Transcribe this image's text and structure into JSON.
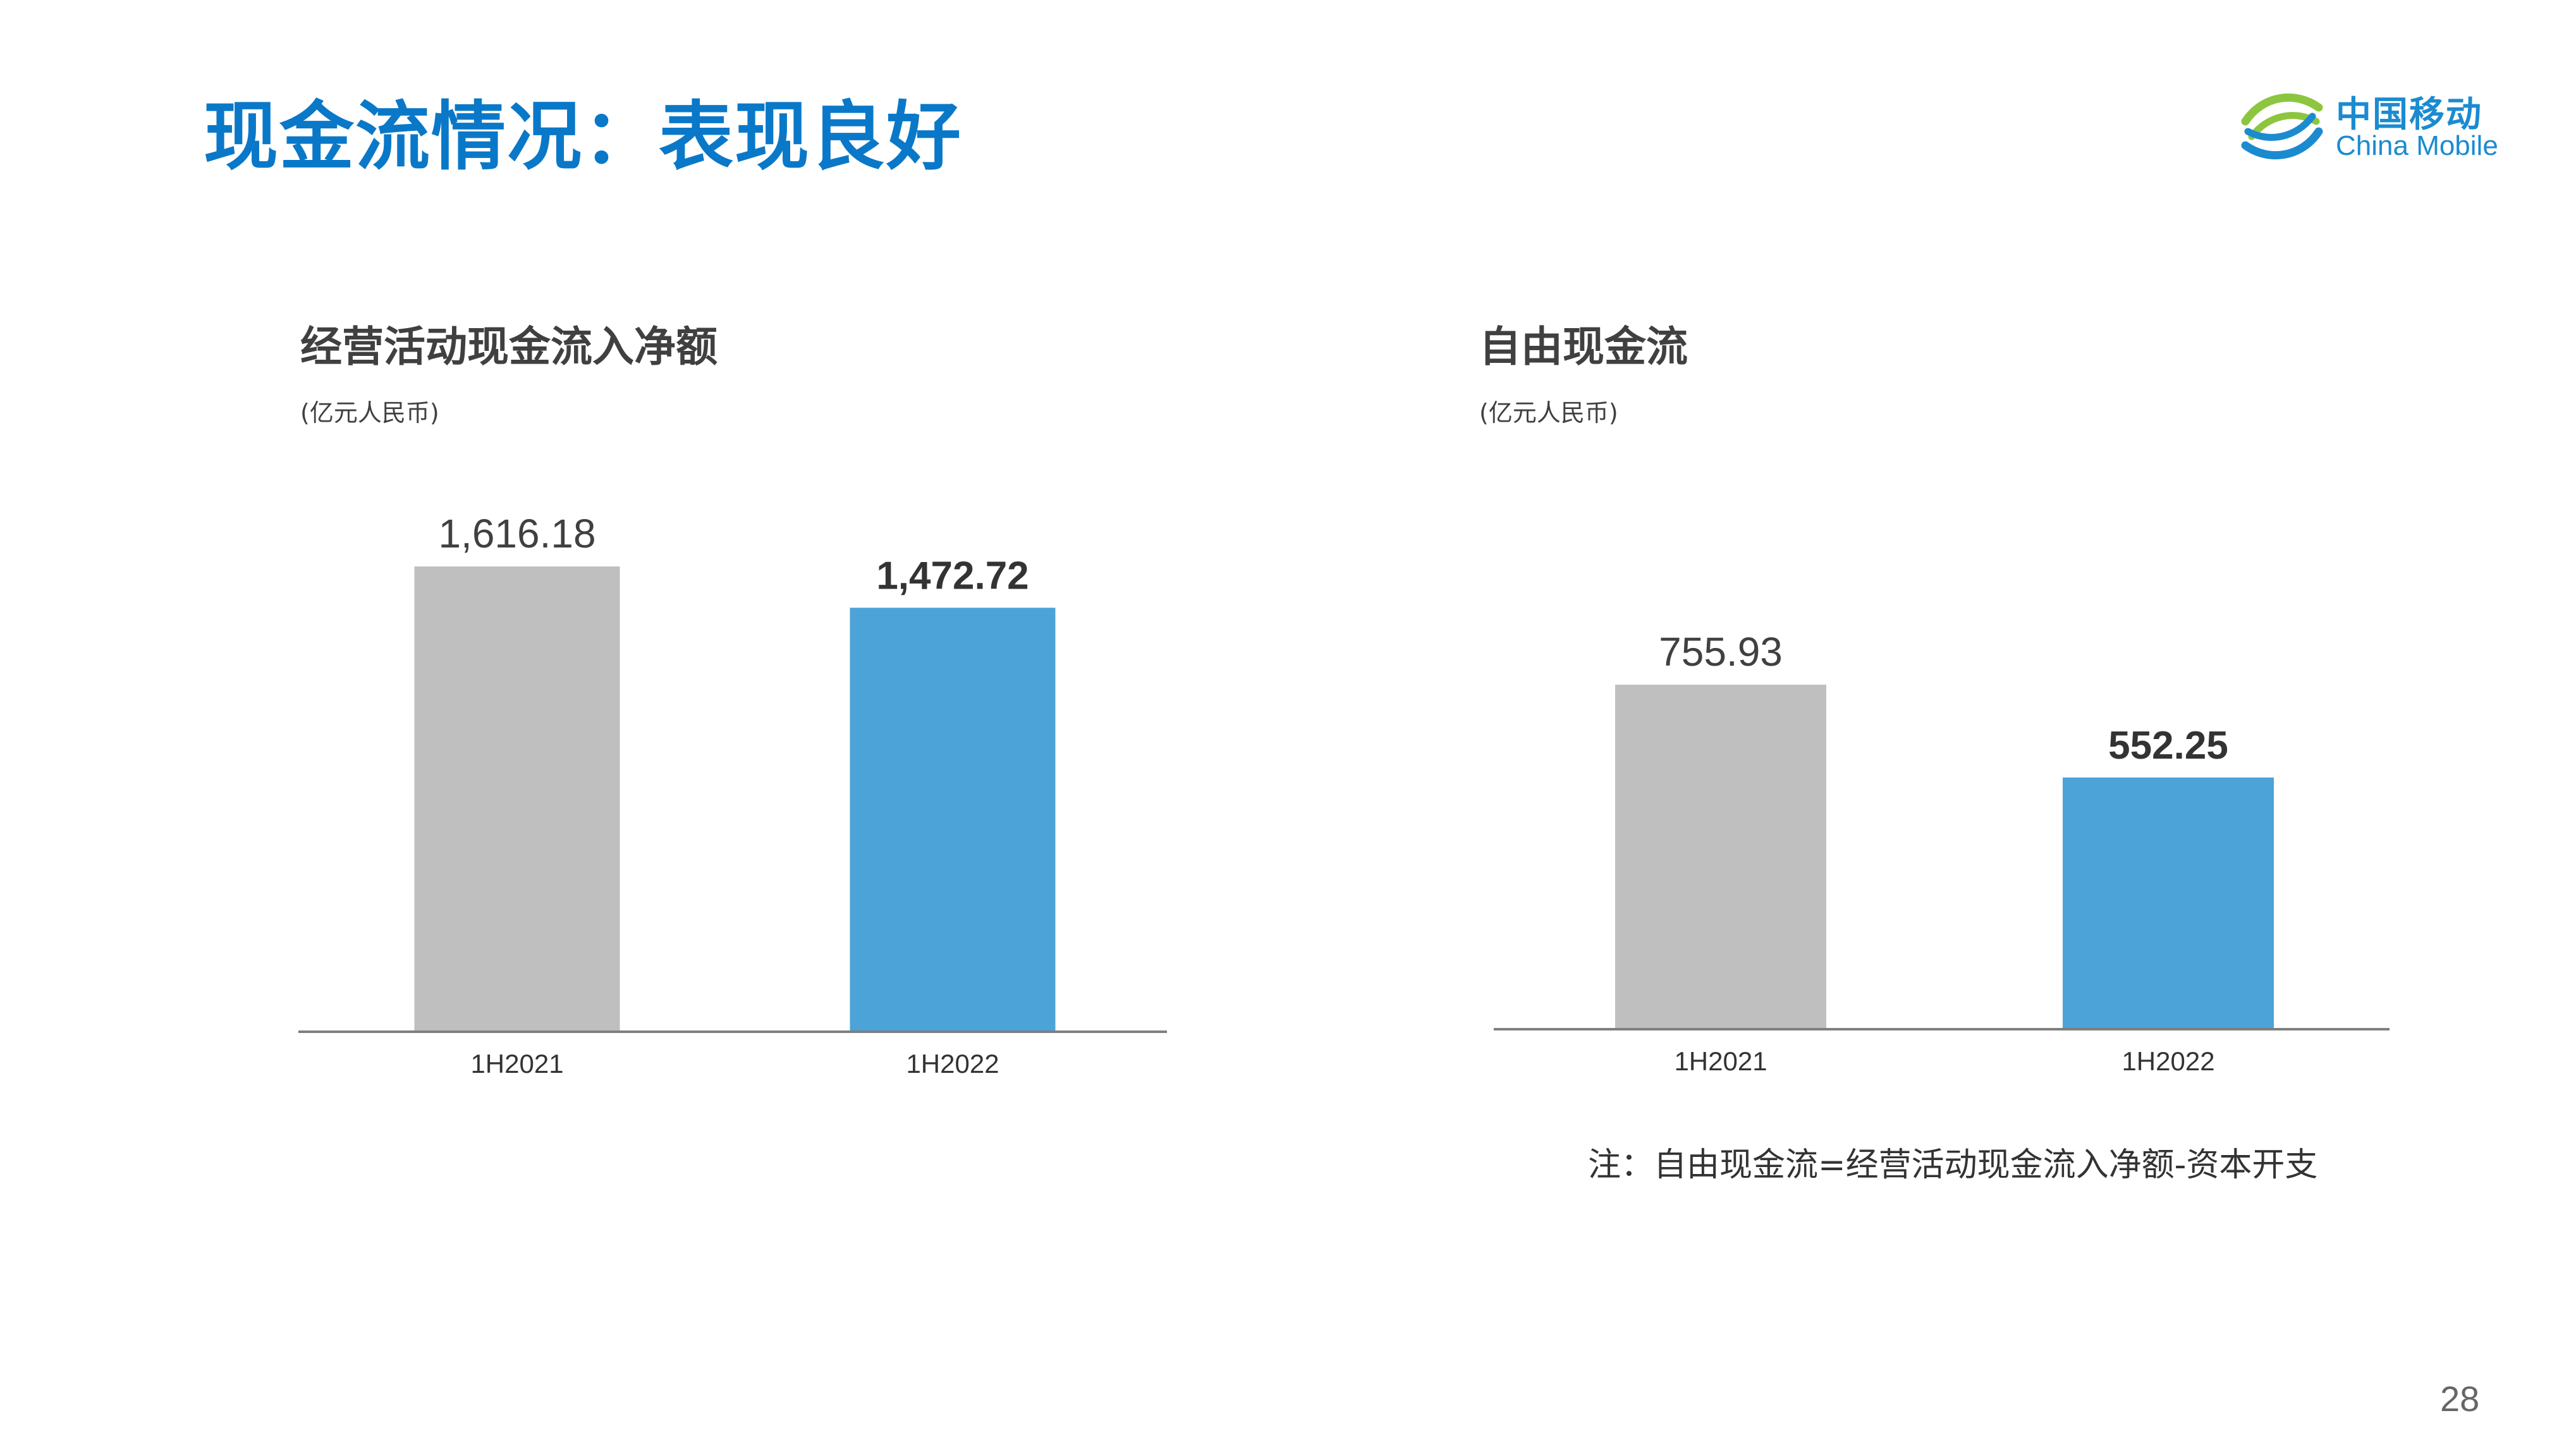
{
  "page": {
    "title": "现金流情况：表现良好",
    "note": "注：自由现金流=经营活动现金流入净额-资本开支",
    "page_number": "28"
  },
  "logo": {
    "cn": "中国移动",
    "en": "China Mobile",
    "icon": "china-mobile-logo-icon",
    "colors": {
      "green": "#8cc63f",
      "blue": "#1b8bd0"
    }
  },
  "colors": {
    "title": "#0a78c8",
    "prior_bar": "#bfbfbf",
    "current_bar": "#4ba3d8",
    "axis": "#7f7f7f"
  },
  "chart_data": [
    {
      "type": "bar",
      "title": "经营活动现金流入净额",
      "unit": "(亿元人民币)",
      "categories": [
        "1H2021",
        "1H2022"
      ],
      "values": [
        1616.18,
        1472.72
      ],
      "value_labels": [
        "1,616.18",
        "1,472.72"
      ],
      "bold_labels": [
        false,
        true
      ],
      "ylim": [
        0,
        1616.18
      ],
      "grid": false,
      "legend": "none"
    },
    {
      "type": "bar",
      "title": "自由现金流",
      "unit": "(亿元人民币)",
      "categories": [
        "1H2021",
        "1H2022"
      ],
      "values": [
        755.93,
        552.25
      ],
      "value_labels": [
        "755.93",
        "552.25"
      ],
      "bold_labels": [
        false,
        true
      ],
      "ylim": [
        0,
        755.93
      ],
      "grid": false,
      "legend": "none"
    }
  ]
}
